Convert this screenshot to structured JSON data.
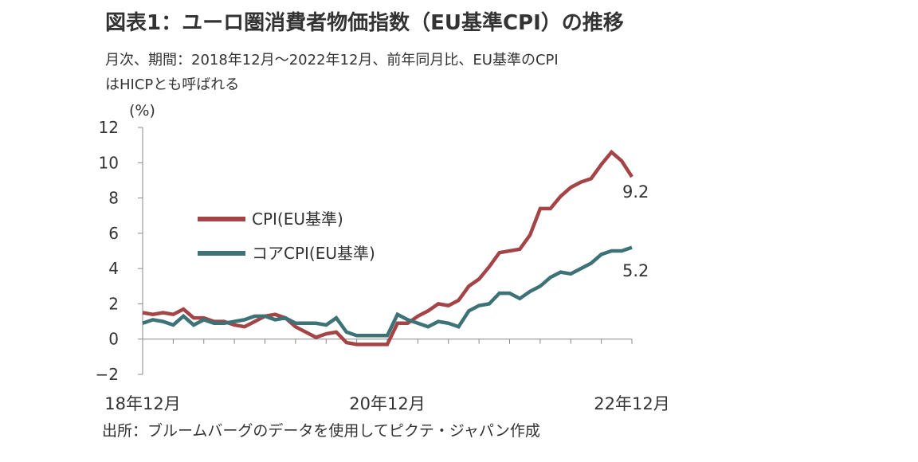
{
  "title": "図表1：ユーロ圏消費者物価指数（EU基準CPI）の推移",
  "subtitle_lines": [
    "月次、期間：2018年12月～2022年12月、前年同月比、EU基準のCPI",
    "はHICPとも呼ばれる"
  ],
  "source": "出所：ブルームバーグのデータを使用してピクテ・ジャパン作成",
  "colors": {
    "cpi": "#a54447",
    "core": "#3d7277",
    "axis": "#888888",
    "text": "#333333"
  },
  "chart_data": {
    "type": "line",
    "unit_label": "(%)",
    "ylim": [
      -2,
      12
    ],
    "y_ticks": [
      12,
      10,
      8,
      6,
      4,
      2,
      0,
      -2
    ],
    "x_tick_labels": [
      "18年12月",
      "20年12月",
      "22年12月"
    ],
    "x_tick_months": [
      0,
      24,
      48
    ],
    "grid": false,
    "legend_position": "center-left",
    "series": [
      {
        "name": "CPI(EU基準)",
        "color": "#a54447",
        "end_label": "9.2",
        "values": [
          1.5,
          1.4,
          1.5,
          1.4,
          1.7,
          1.2,
          1.2,
          1.0,
          1.0,
          0.8,
          0.7,
          1.0,
          1.3,
          1.4,
          1.2,
          0.7,
          0.4,
          0.1,
          0.3,
          0.4,
          -0.2,
          -0.3,
          -0.3,
          -0.3,
          -0.3,
          0.9,
          0.9,
          1.3,
          1.6,
          2.0,
          1.9,
          2.2,
          3.0,
          3.4,
          4.1,
          4.9,
          5.0,
          5.1,
          5.9,
          7.4,
          7.4,
          8.1,
          8.6,
          8.9,
          9.1,
          9.9,
          10.6,
          10.1,
          9.2
        ]
      },
      {
        "name": "コアCPI(EU基準)",
        "color": "#3d7277",
        "end_label": "5.2",
        "values": [
          0.9,
          1.1,
          1.0,
          0.8,
          1.3,
          0.8,
          1.1,
          0.9,
          0.9,
          1.0,
          1.1,
          1.3,
          1.3,
          1.1,
          1.2,
          0.9,
          0.9,
          0.9,
          0.8,
          1.2,
          0.4,
          0.2,
          0.2,
          0.2,
          0.2,
          1.4,
          1.1,
          0.9,
          0.7,
          1.0,
          0.9,
          0.7,
          1.6,
          1.9,
          2.0,
          2.6,
          2.6,
          2.3,
          2.7,
          3.0,
          3.5,
          3.8,
          3.7,
          4.0,
          4.3,
          4.8,
          5.0,
          5.0,
          5.2
        ]
      }
    ]
  }
}
